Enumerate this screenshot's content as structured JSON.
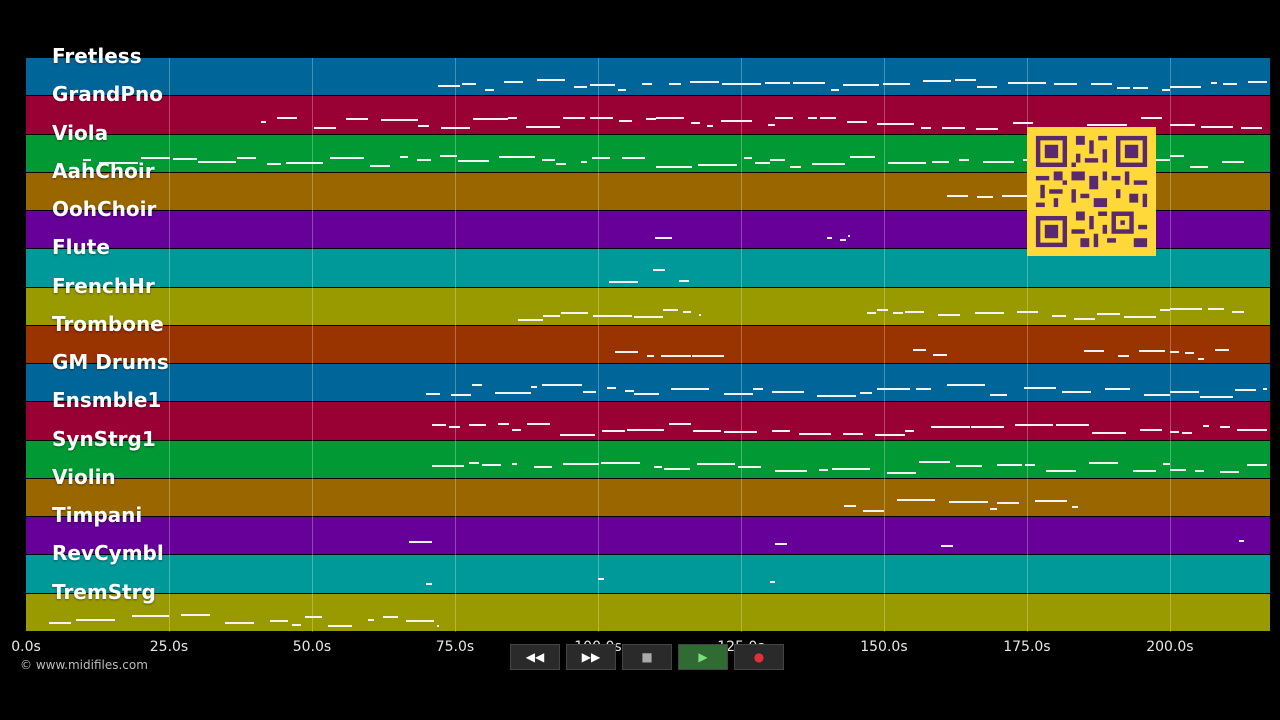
{
  "tracks": [
    {
      "name": "Fretless",
      "color": "#006699"
    },
    {
      "name": "GrandPno",
      "color": "#990033"
    },
    {
      "name": "Viola",
      "color": "#009933"
    },
    {
      "name": "AahChoir",
      "color": "#996600"
    },
    {
      "name": "OohChoir",
      "color": "#660099"
    },
    {
      "name": "Flute",
      "color": "#009999"
    },
    {
      "name": "FrenchHr",
      "color": "#999900"
    },
    {
      "name": "Trombone",
      "color": "#993300"
    },
    {
      "name": "GM Drums",
      "color": "#006699"
    },
    {
      "name": "Ensmble1",
      "color": "#990033"
    },
    {
      "name": "SynStrg1",
      "color": "#009933"
    },
    {
      "name": "Violin",
      "color": "#996600"
    },
    {
      "name": "Timpani",
      "color": "#660099"
    },
    {
      "name": "RevCymbl",
      "color": "#009999"
    },
    {
      "name": "TremStrg",
      "color": "#999900"
    }
  ],
  "time_axis": {
    "labels": [
      "0.0s",
      "25.0s",
      "50.0s",
      "75.0s",
      "100.0s",
      "125.0s",
      "150.0s",
      "175.0s",
      "200.0s"
    ],
    "max_seconds": 217.5
  },
  "copyright": "© www.midifiles.com",
  "controls": {
    "rewind": "◀◀",
    "fast_forward": "▶▶",
    "stop": "■",
    "play": "▶",
    "record": "●"
  },
  "colors": {
    "background": "#000000",
    "qr_background": "#ffd83a",
    "qr_foreground": "#5a2a6e",
    "record": "#e0303a",
    "play": "#4caf50"
  }
}
